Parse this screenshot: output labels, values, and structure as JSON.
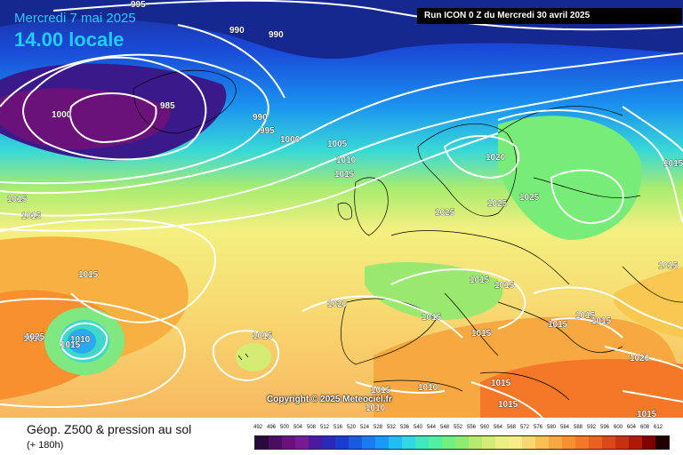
{
  "header": {
    "date": "Mercredi 7 mai 2025",
    "time": "14.00 locale",
    "run": "Run ICON 0 Z du Mercredi 30 avril 2025"
  },
  "copyright": "Copyright © 2025 Meteociel.fr",
  "footer": {
    "title": "Géop. Z500 & pression au sol",
    "subtitle": "(+ 180h)"
  },
  "scale": {
    "labels": [
      "492",
      "496",
      "500",
      "504",
      "508",
      "512",
      "516",
      "520",
      "524",
      "528",
      "532",
      "536",
      "540",
      "544",
      "548",
      "552",
      "556",
      "560",
      "564",
      "568",
      "572",
      "576",
      "580",
      "584",
      "588",
      "592",
      "596",
      "600",
      "604",
      "608",
      "612"
    ],
    "colors": [
      "#2a0a3a",
      "#4a0e5e",
      "#6a127a",
      "#7a1a90",
      "#4a1aa0",
      "#2a2ab8",
      "#1a3ad0",
      "#1a5ae0",
      "#1a7af0",
      "#1a9af8",
      "#20bef4",
      "#30d8e0",
      "#40e8c0",
      "#50f0a0",
      "#70f080",
      "#90ec70",
      "#b4ea70",
      "#d4ec74",
      "#ecf080",
      "#f8ec88",
      "#f8d870",
      "#f8c050",
      "#f8a840",
      "#f89030",
      "#f47828",
      "#ec6020",
      "#dc4818",
      "#c83010",
      "#b01808",
      "#800000",
      "#200000"
    ]
  },
  "isobars": [
    "995",
    "990",
    "990",
    "985",
    "1000",
    "990",
    "995",
    "1000",
    "1005",
    "1010",
    "1015",
    "1015",
    "1015",
    "1020",
    "1025",
    "1025",
    "1025",
    "1015",
    "1015",
    "1020",
    "1015",
    "1015",
    "1015",
    "1015",
    "1015",
    "1015",
    "1015",
    "1025",
    "1010",
    "1015",
    "1015",
    "1015",
    "1015",
    "1015",
    "1015",
    "1010",
    "1010",
    "1015",
    "1020",
    "1015"
  ]
}
